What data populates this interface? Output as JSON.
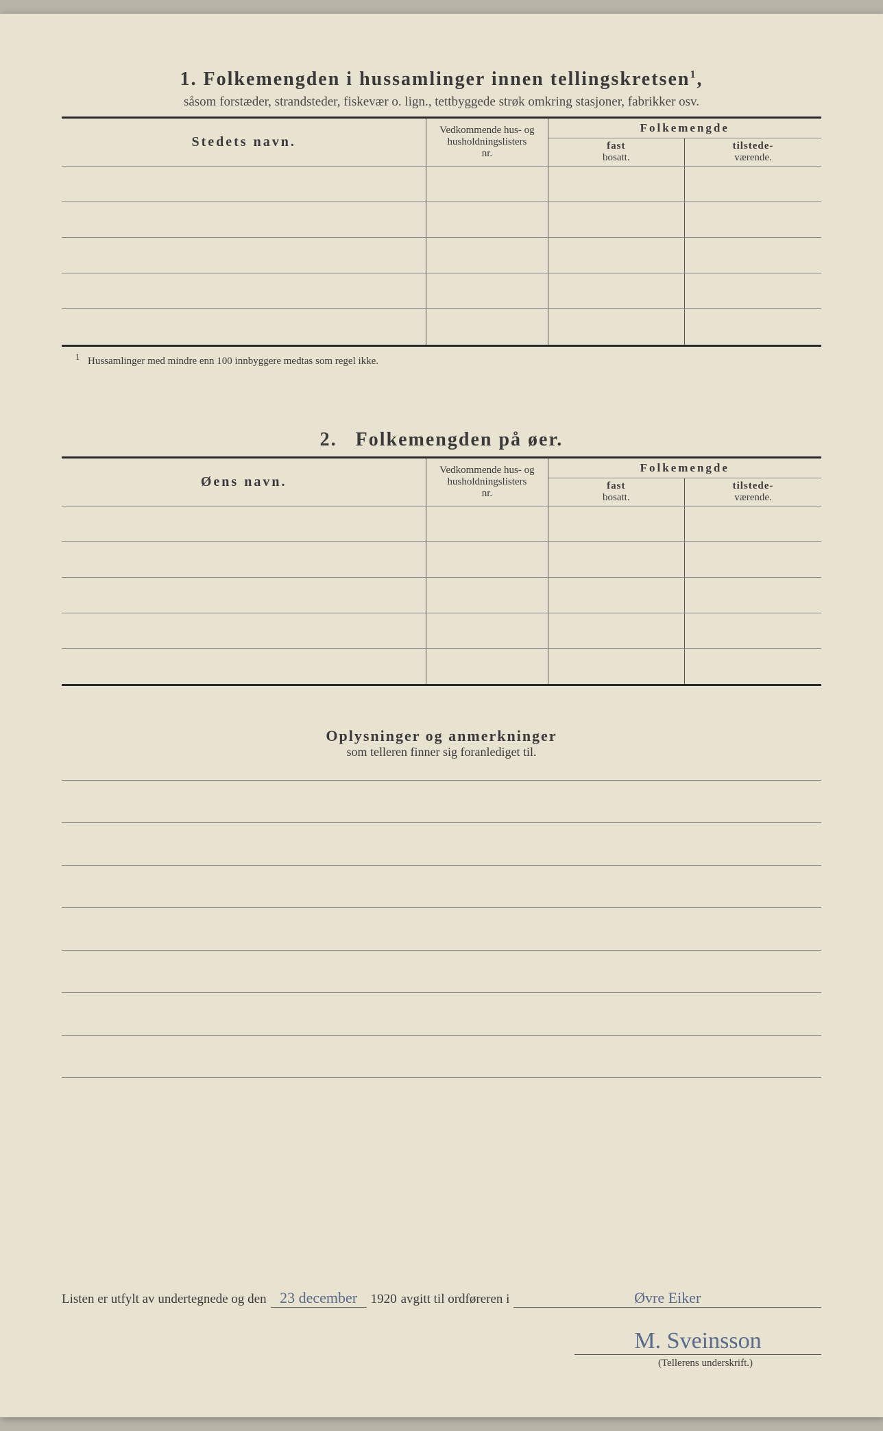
{
  "section1": {
    "number": "1.",
    "title": "Folkemengden i hussamlinger innen tellingskretsen",
    "superscript": "1",
    "subtitle": "såsom forstæder, strandsteder, fiskevær o. lign., tettbyggede strøk omkring stasjoner, fabrikker osv.",
    "columns": {
      "name": "Stedets navn.",
      "hus_line1": "Vedkommende hus- og",
      "hus_line2": "husholdningslisters",
      "hus_line3": "nr.",
      "folkemengde": "Folkemengde",
      "fast_bold": "fast",
      "fast_sub": "bosatt.",
      "til_bold": "tilstede-",
      "til_sub": "værende."
    },
    "row_count": 5,
    "footnote_num": "1",
    "footnote": "Hussamlinger med mindre enn 100 innbyggere medtas som regel ikke."
  },
  "section2": {
    "number": "2.",
    "title": "Folkemengden på øer.",
    "columns": {
      "name": "Øens navn.",
      "hus_line1": "Vedkommende hus- og",
      "hus_line2": "husholdningslisters",
      "hus_line3": "nr.",
      "folkemengde": "Folkemengde",
      "fast_bold": "fast",
      "fast_sub": "bosatt.",
      "til_bold": "tilstede-",
      "til_sub": "værende."
    },
    "row_count": 5
  },
  "remarks": {
    "title": "Oplysninger og anmerkninger",
    "subtitle": "som telleren finner sig foranlediget til.",
    "line_count": 8
  },
  "declaration": {
    "prefix": "Listen er utfylt av undertegnede og den",
    "date_handwritten": "23 december",
    "year": "1920",
    "middle": "avgitt til ordføreren i",
    "place_handwritten": "Øvre Eiker"
  },
  "signature": {
    "text": "M. Sveinsson",
    "label": "(Tellerens underskrift.)"
  },
  "colors": {
    "paper": "#e8e2d0",
    "ink": "#3a3a3a",
    "rule": "#2a2a2a",
    "handwriting": "#5a6a8a"
  }
}
